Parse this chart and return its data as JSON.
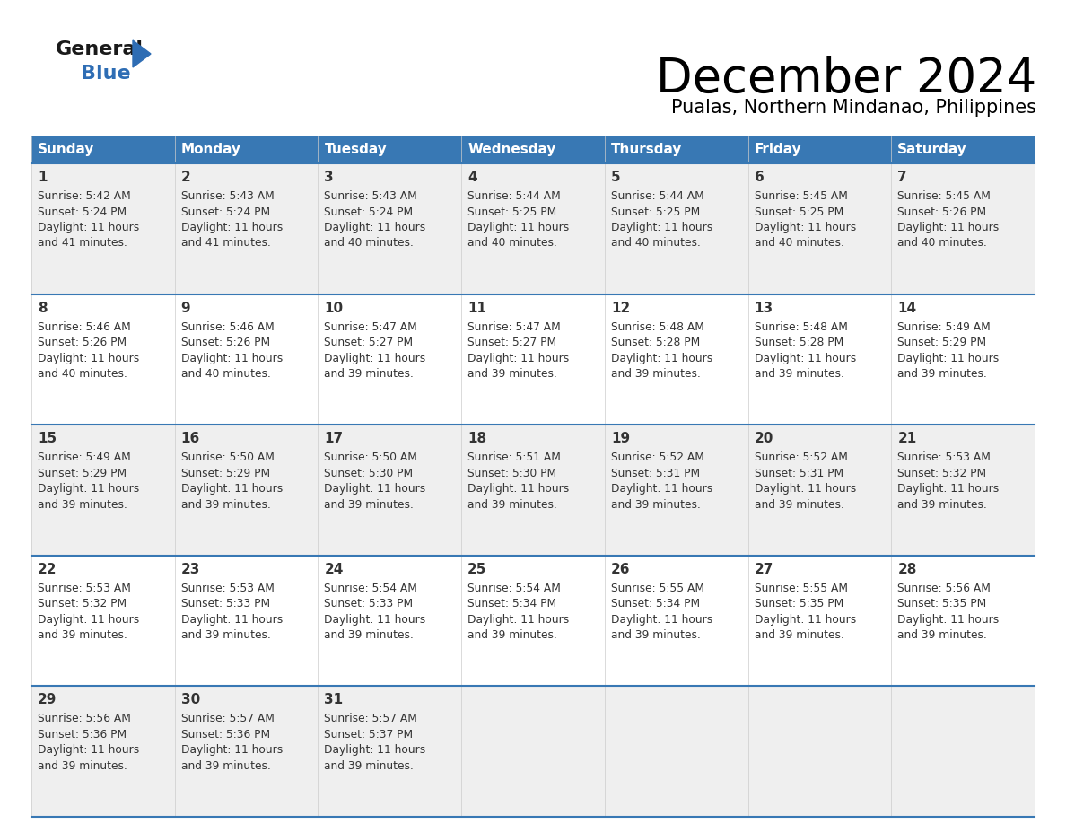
{
  "title": "December 2024",
  "subtitle": "Pualas, Northern Mindanao, Philippines",
  "header_bg": "#3878b4",
  "header_text": "#ffffff",
  "row_bg_even": "#efefef",
  "row_bg_odd": "#ffffff",
  "divider_color": "#3878b4",
  "text_color": "#333333",
  "days_of_week": [
    "Sunday",
    "Monday",
    "Tuesday",
    "Wednesday",
    "Thursday",
    "Friday",
    "Saturday"
  ],
  "calendar": [
    [
      {
        "day": "1",
        "sunrise": "5:42 AM",
        "sunset": "5:24 PM",
        "dl1": "Daylight: 11 hours",
        "dl2": "and 41 minutes."
      },
      {
        "day": "2",
        "sunrise": "5:43 AM",
        "sunset": "5:24 PM",
        "dl1": "Daylight: 11 hours",
        "dl2": "and 41 minutes."
      },
      {
        "day": "3",
        "sunrise": "5:43 AM",
        "sunset": "5:24 PM",
        "dl1": "Daylight: 11 hours",
        "dl2": "and 40 minutes."
      },
      {
        "day": "4",
        "sunrise": "5:44 AM",
        "sunset": "5:25 PM",
        "dl1": "Daylight: 11 hours",
        "dl2": "and 40 minutes."
      },
      {
        "day": "5",
        "sunrise": "5:44 AM",
        "sunset": "5:25 PM",
        "dl1": "Daylight: 11 hours",
        "dl2": "and 40 minutes."
      },
      {
        "day": "6",
        "sunrise": "5:45 AM",
        "sunset": "5:25 PM",
        "dl1": "Daylight: 11 hours",
        "dl2": "and 40 minutes."
      },
      {
        "day": "7",
        "sunrise": "5:45 AM",
        "sunset": "5:26 PM",
        "dl1": "Daylight: 11 hours",
        "dl2": "and 40 minutes."
      }
    ],
    [
      {
        "day": "8",
        "sunrise": "5:46 AM",
        "sunset": "5:26 PM",
        "dl1": "Daylight: 11 hours",
        "dl2": "and 40 minutes."
      },
      {
        "day": "9",
        "sunrise": "5:46 AM",
        "sunset": "5:26 PM",
        "dl1": "Daylight: 11 hours",
        "dl2": "and 40 minutes."
      },
      {
        "day": "10",
        "sunrise": "5:47 AM",
        "sunset": "5:27 PM",
        "dl1": "Daylight: 11 hours",
        "dl2": "and 39 minutes."
      },
      {
        "day": "11",
        "sunrise": "5:47 AM",
        "sunset": "5:27 PM",
        "dl1": "Daylight: 11 hours",
        "dl2": "and 39 minutes."
      },
      {
        "day": "12",
        "sunrise": "5:48 AM",
        "sunset": "5:28 PM",
        "dl1": "Daylight: 11 hours",
        "dl2": "and 39 minutes."
      },
      {
        "day": "13",
        "sunrise": "5:48 AM",
        "sunset": "5:28 PM",
        "dl1": "Daylight: 11 hours",
        "dl2": "and 39 minutes."
      },
      {
        "day": "14",
        "sunrise": "5:49 AM",
        "sunset": "5:29 PM",
        "dl1": "Daylight: 11 hours",
        "dl2": "and 39 minutes."
      }
    ],
    [
      {
        "day": "15",
        "sunrise": "5:49 AM",
        "sunset": "5:29 PM",
        "dl1": "Daylight: 11 hours",
        "dl2": "and 39 minutes."
      },
      {
        "day": "16",
        "sunrise": "5:50 AM",
        "sunset": "5:29 PM",
        "dl1": "Daylight: 11 hours",
        "dl2": "and 39 minutes."
      },
      {
        "day": "17",
        "sunrise": "5:50 AM",
        "sunset": "5:30 PM",
        "dl1": "Daylight: 11 hours",
        "dl2": "and 39 minutes."
      },
      {
        "day": "18",
        "sunrise": "5:51 AM",
        "sunset": "5:30 PM",
        "dl1": "Daylight: 11 hours",
        "dl2": "and 39 minutes."
      },
      {
        "day": "19",
        "sunrise": "5:52 AM",
        "sunset": "5:31 PM",
        "dl1": "Daylight: 11 hours",
        "dl2": "and 39 minutes."
      },
      {
        "day": "20",
        "sunrise": "5:52 AM",
        "sunset": "5:31 PM",
        "dl1": "Daylight: 11 hours",
        "dl2": "and 39 minutes."
      },
      {
        "day": "21",
        "sunrise": "5:53 AM",
        "sunset": "5:32 PM",
        "dl1": "Daylight: 11 hours",
        "dl2": "and 39 minutes."
      }
    ],
    [
      {
        "day": "22",
        "sunrise": "5:53 AM",
        "sunset": "5:32 PM",
        "dl1": "Daylight: 11 hours",
        "dl2": "and 39 minutes."
      },
      {
        "day": "23",
        "sunrise": "5:53 AM",
        "sunset": "5:33 PM",
        "dl1": "Daylight: 11 hours",
        "dl2": "and 39 minutes."
      },
      {
        "day": "24",
        "sunrise": "5:54 AM",
        "sunset": "5:33 PM",
        "dl1": "Daylight: 11 hours",
        "dl2": "and 39 minutes."
      },
      {
        "day": "25",
        "sunrise": "5:54 AM",
        "sunset": "5:34 PM",
        "dl1": "Daylight: 11 hours",
        "dl2": "and 39 minutes."
      },
      {
        "day": "26",
        "sunrise": "5:55 AM",
        "sunset": "5:34 PM",
        "dl1": "Daylight: 11 hours",
        "dl2": "and 39 minutes."
      },
      {
        "day": "27",
        "sunrise": "5:55 AM",
        "sunset": "5:35 PM",
        "dl1": "Daylight: 11 hours",
        "dl2": "and 39 minutes."
      },
      {
        "day": "28",
        "sunrise": "5:56 AM",
        "sunset": "5:35 PM",
        "dl1": "Daylight: 11 hours",
        "dl2": "and 39 minutes."
      }
    ],
    [
      {
        "day": "29",
        "sunrise": "5:56 AM",
        "sunset": "5:36 PM",
        "dl1": "Daylight: 11 hours",
        "dl2": "and 39 minutes."
      },
      {
        "day": "30",
        "sunrise": "5:57 AM",
        "sunset": "5:36 PM",
        "dl1": "Daylight: 11 hours",
        "dl2": "and 39 minutes."
      },
      {
        "day": "31",
        "sunrise": "5:57 AM",
        "sunset": "5:37 PM",
        "dl1": "Daylight: 11 hours",
        "dl2": "and 39 minutes."
      },
      null,
      null,
      null,
      null
    ]
  ],
  "logo_general_color": "#1a1a1a",
  "logo_blue_color": "#2e6db4",
  "logo_triangle_color": "#2e6db4"
}
